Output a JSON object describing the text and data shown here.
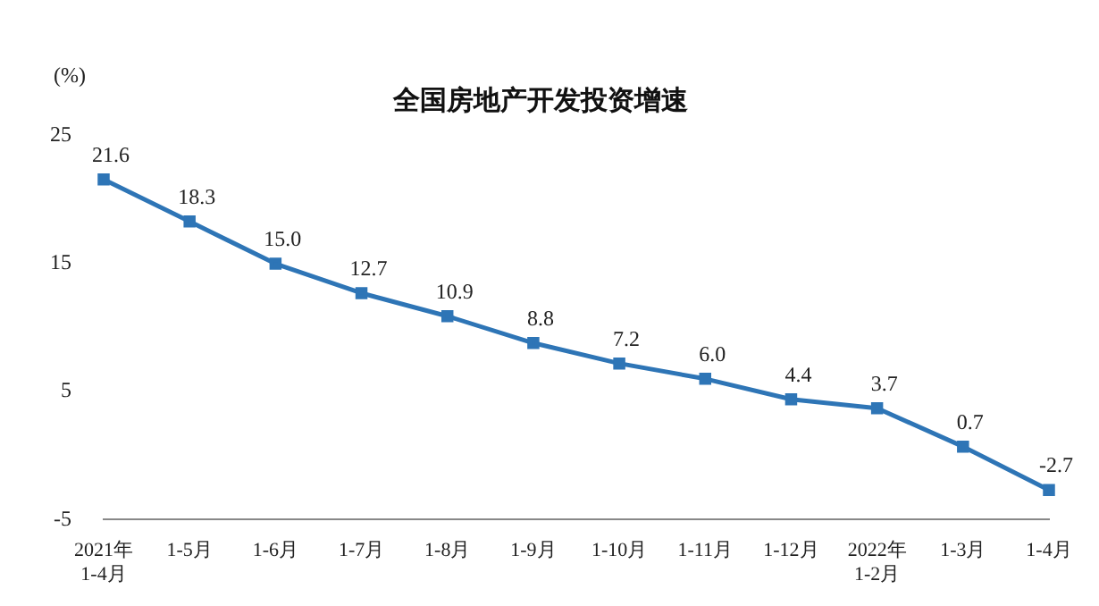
{
  "chart_data": {
    "type": "line",
    "title": "全国房地产开发投资增速",
    "ylabel": "(%)",
    "categories": [
      "2021年\n1-4月",
      "1-5月",
      "1-6月",
      "1-7月",
      "1-8月",
      "1-9月",
      "1-10月",
      "1-11月",
      "1-12月",
      "2022年\n1-2月",
      "1-3月",
      "1-4月"
    ],
    "series": [
      {
        "color": "#2e75b6",
        "values": [
          21.6,
          18.3,
          15.0,
          12.7,
          10.9,
          8.8,
          7.2,
          6.0,
          4.4,
          3.7,
          0.7,
          -2.7
        ],
        "value_labels": [
          "21.6",
          "18.3",
          "15.0",
          "12.7",
          "10.9",
          "8.8",
          "7.2",
          "6.0",
          "4.4",
          "3.7",
          "0.7",
          "-2.7"
        ]
      }
    ],
    "ylim": [
      -5,
      25
    ],
    "yticks": [
      -5,
      5,
      15,
      25
    ],
    "grid": false,
    "legend": false,
    "marker": "square",
    "line_style": "solid"
  }
}
